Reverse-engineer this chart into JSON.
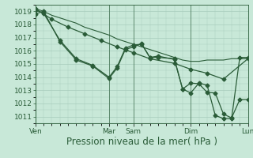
{
  "bg_color": "#c8e8d8",
  "grid_color": "#a8ccbc",
  "line_color": "#2a5c38",
  "marker_color": "#2a5c38",
  "xlabel": "Pression niveau de la mer( hPa )",
  "xlabel_fontsize": 8.5,
  "tick_fontsize": 6.5,
  "ylim": [
    1010.5,
    1019.5
  ],
  "yticks": [
    1011,
    1012,
    1013,
    1014,
    1015,
    1016,
    1017,
    1018,
    1019
  ],
  "day_labels": [
    "Ven",
    "Mar",
    "Sam",
    "Dim",
    "Lun"
  ],
  "day_x": [
    0,
    9,
    12,
    19,
    26
  ],
  "xlim": [
    0,
    26
  ],
  "series1_x": [
    0,
    1,
    2,
    3,
    4,
    5,
    6,
    7,
    8,
    9,
    10,
    11,
    12,
    13,
    14,
    15,
    16,
    17,
    18,
    19,
    20,
    21,
    22,
    23,
    24,
    25,
    26
  ],
  "series1_y": [
    1019.2,
    1019.0,
    1018.7,
    1018.5,
    1018.3,
    1018.1,
    1017.8,
    1017.6,
    1017.4,
    1017.2,
    1016.9,
    1016.7,
    1016.5,
    1016.3,
    1016.1,
    1015.9,
    1015.7,
    1015.5,
    1015.3,
    1015.2,
    1015.2,
    1015.3,
    1015.3,
    1015.3,
    1015.4,
    1015.4,
    1015.4
  ],
  "series2_x": [
    0,
    1,
    3,
    5,
    7,
    9,
    10,
    11,
    12,
    13,
    14,
    15,
    17,
    18,
    19,
    20,
    21,
    22,
    23,
    24,
    25,
    26
  ],
  "series2_y": [
    1018.8,
    1019.0,
    1016.7,
    1015.3,
    1014.85,
    1013.9,
    1014.7,
    1016.1,
    1016.3,
    1016.55,
    1015.5,
    1015.5,
    1015.4,
    1013.1,
    1012.8,
    1013.55,
    1013.4,
    1011.1,
    1010.85,
    1010.85,
    1015.5,
    1015.5
  ],
  "series3_x": [
    0,
    1,
    3,
    5,
    7,
    9,
    10,
    11,
    12,
    13,
    14,
    15,
    17,
    18,
    19,
    20,
    21,
    22,
    23,
    24,
    25,
    26
  ],
  "series3_y": [
    1019.1,
    1018.85,
    1016.8,
    1015.4,
    1014.9,
    1014.0,
    1014.8,
    1016.2,
    1016.45,
    1016.5,
    1015.5,
    1015.6,
    1015.35,
    1013.1,
    1013.55,
    1013.5,
    1012.85,
    1012.8,
    1011.2,
    1010.9,
    1012.3,
    1012.3
  ],
  "series4_x": [
    0,
    2,
    4,
    6,
    8,
    10,
    12,
    14,
    17,
    19,
    21,
    23,
    26
  ],
  "series4_y": [
    1019.2,
    1018.4,
    1017.8,
    1017.3,
    1016.8,
    1016.3,
    1015.85,
    1015.4,
    1015.05,
    1014.6,
    1014.3,
    1013.85,
    1015.4
  ]
}
